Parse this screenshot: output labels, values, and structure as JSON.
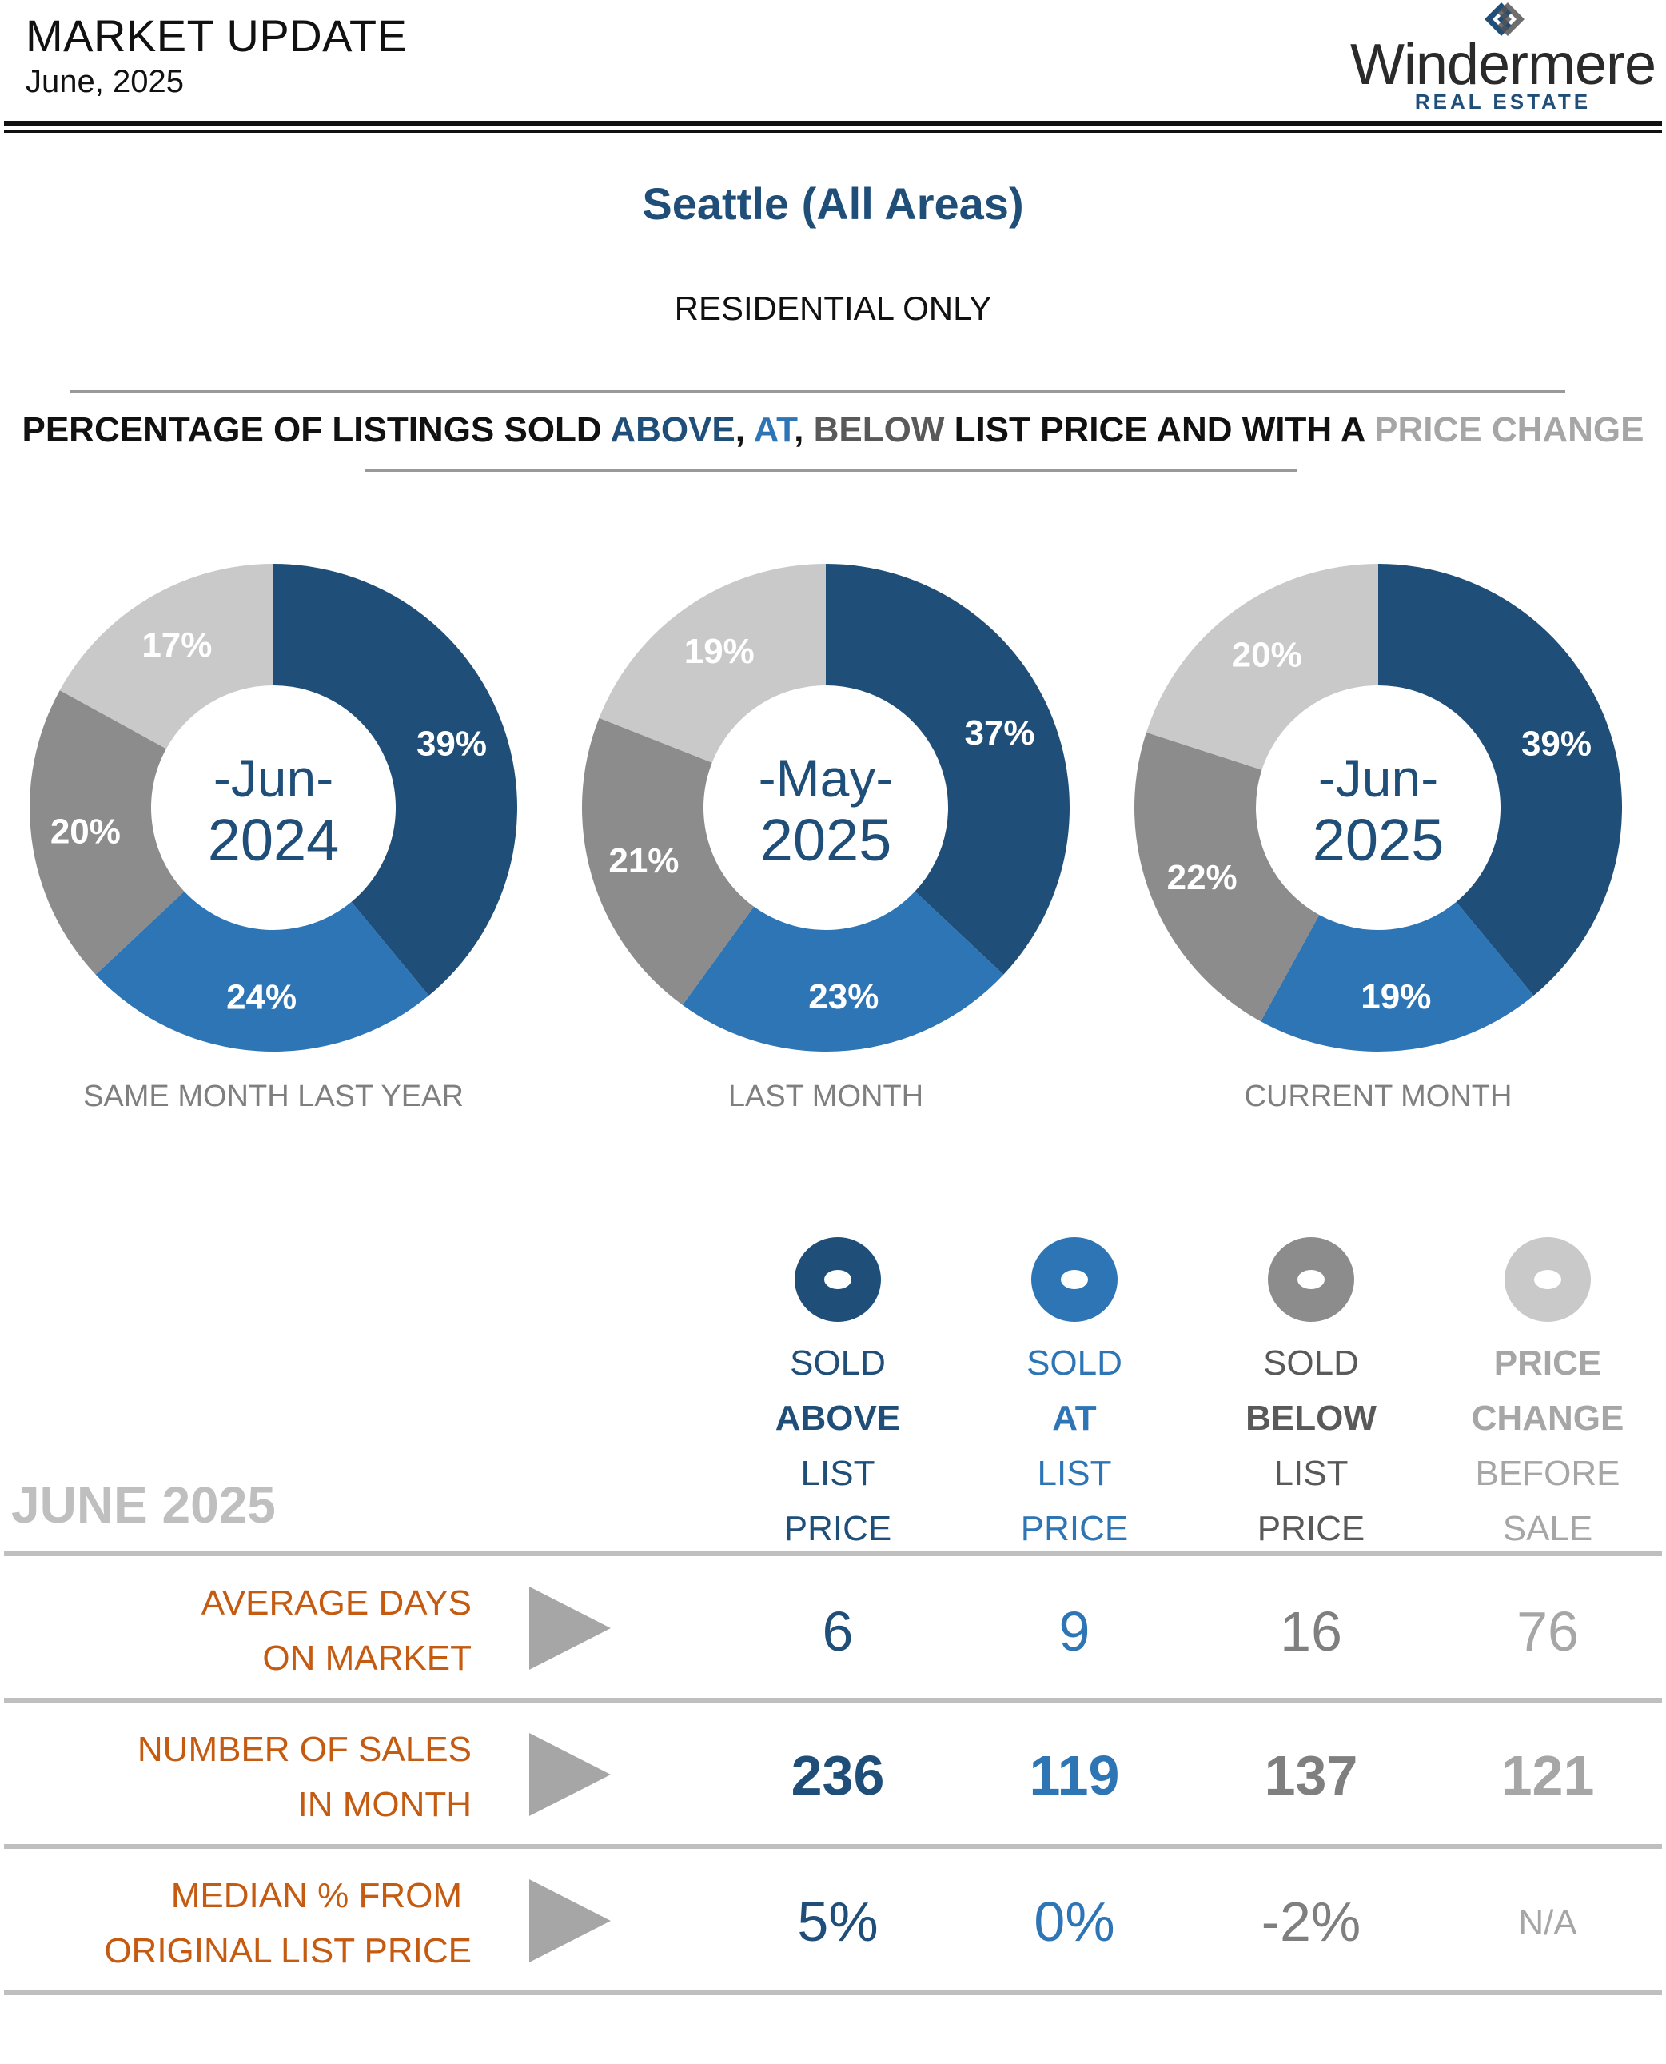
{
  "header": {
    "title": "MARKET UPDATE",
    "date": "June, 2025"
  },
  "logo": {
    "wordmark": "Windermere",
    "subtitle": "REAL ESTATE"
  },
  "report": {
    "area_title": "Seattle (All Areas)",
    "subtitle": "RESIDENTIAL ONLY",
    "heading_parts": [
      "PERCENTAGE OF LISTINGS SOLD ",
      "ABOVE",
      ", ",
      "AT",
      ", ",
      "BELOW",
      " LIST PRICE AND WITH A ",
      "PRICE CHANGE"
    ]
  },
  "colors": {
    "above": "#1f4e79",
    "at": "#2e75b6",
    "below": "#8c8c8c",
    "price_change": "#c9c9c9",
    "row_label": "#c55a11"
  },
  "chart_data": [
    {
      "type": "pie",
      "center_label_line1": "-Jun-",
      "center_label_line2": "2024",
      "caption": "SAME MONTH LAST YEAR",
      "labels": [
        "39%",
        "24%",
        "20%",
        "17%"
      ],
      "values": [
        39,
        24,
        20,
        17
      ]
    },
    {
      "type": "pie",
      "center_label_line1": "-May-",
      "center_label_line2": "2025",
      "caption": "LAST MONTH",
      "labels": [
        "37%",
        "23%",
        "21%",
        "19%"
      ],
      "values": [
        37,
        23,
        21,
        19
      ]
    },
    {
      "type": "pie",
      "center_label_line1": "-Jun-",
      "center_label_line2": "2025",
      "caption": "CURRENT MONTH",
      "labels": [
        "39%",
        "19%",
        "22%",
        "20%"
      ],
      "values": [
        39,
        19,
        22,
        20
      ]
    }
  ],
  "legend": [
    {
      "lines": [
        "SOLD",
        "ABOVE",
        "LIST",
        "PRICE"
      ],
      "color": "#1f4e79"
    },
    {
      "lines": [
        "SOLD",
        "AT",
        "LIST",
        "PRICE"
      ],
      "color": "#2e75b6"
    },
    {
      "lines": [
        "SOLD",
        "BELOW",
        "LIST",
        "PRICE"
      ],
      "color": "#8c8c8c"
    },
    {
      "lines": [
        "PRICE",
        "CHANGE",
        "BEFORE",
        "SALE"
      ],
      "color": "#c9c9c9"
    }
  ],
  "table": {
    "period_label": "JUNE 2025",
    "rows": [
      {
        "label_line1": "AVERAGE DAYS",
        "label_line2": "ON MARKET",
        "values": [
          "6",
          "9",
          "16",
          "76"
        ]
      },
      {
        "label_line1": "NUMBER OF SALES",
        "label_line2": "IN MONTH",
        "values": [
          "236",
          "119",
          "137",
          "121"
        ]
      },
      {
        "label_line1": "MEDIAN % FROM",
        "label_line2": "ORIGINAL LIST PRICE",
        "values": [
          "5%",
          "0%",
          "-2%",
          "N/A"
        ]
      }
    ]
  }
}
